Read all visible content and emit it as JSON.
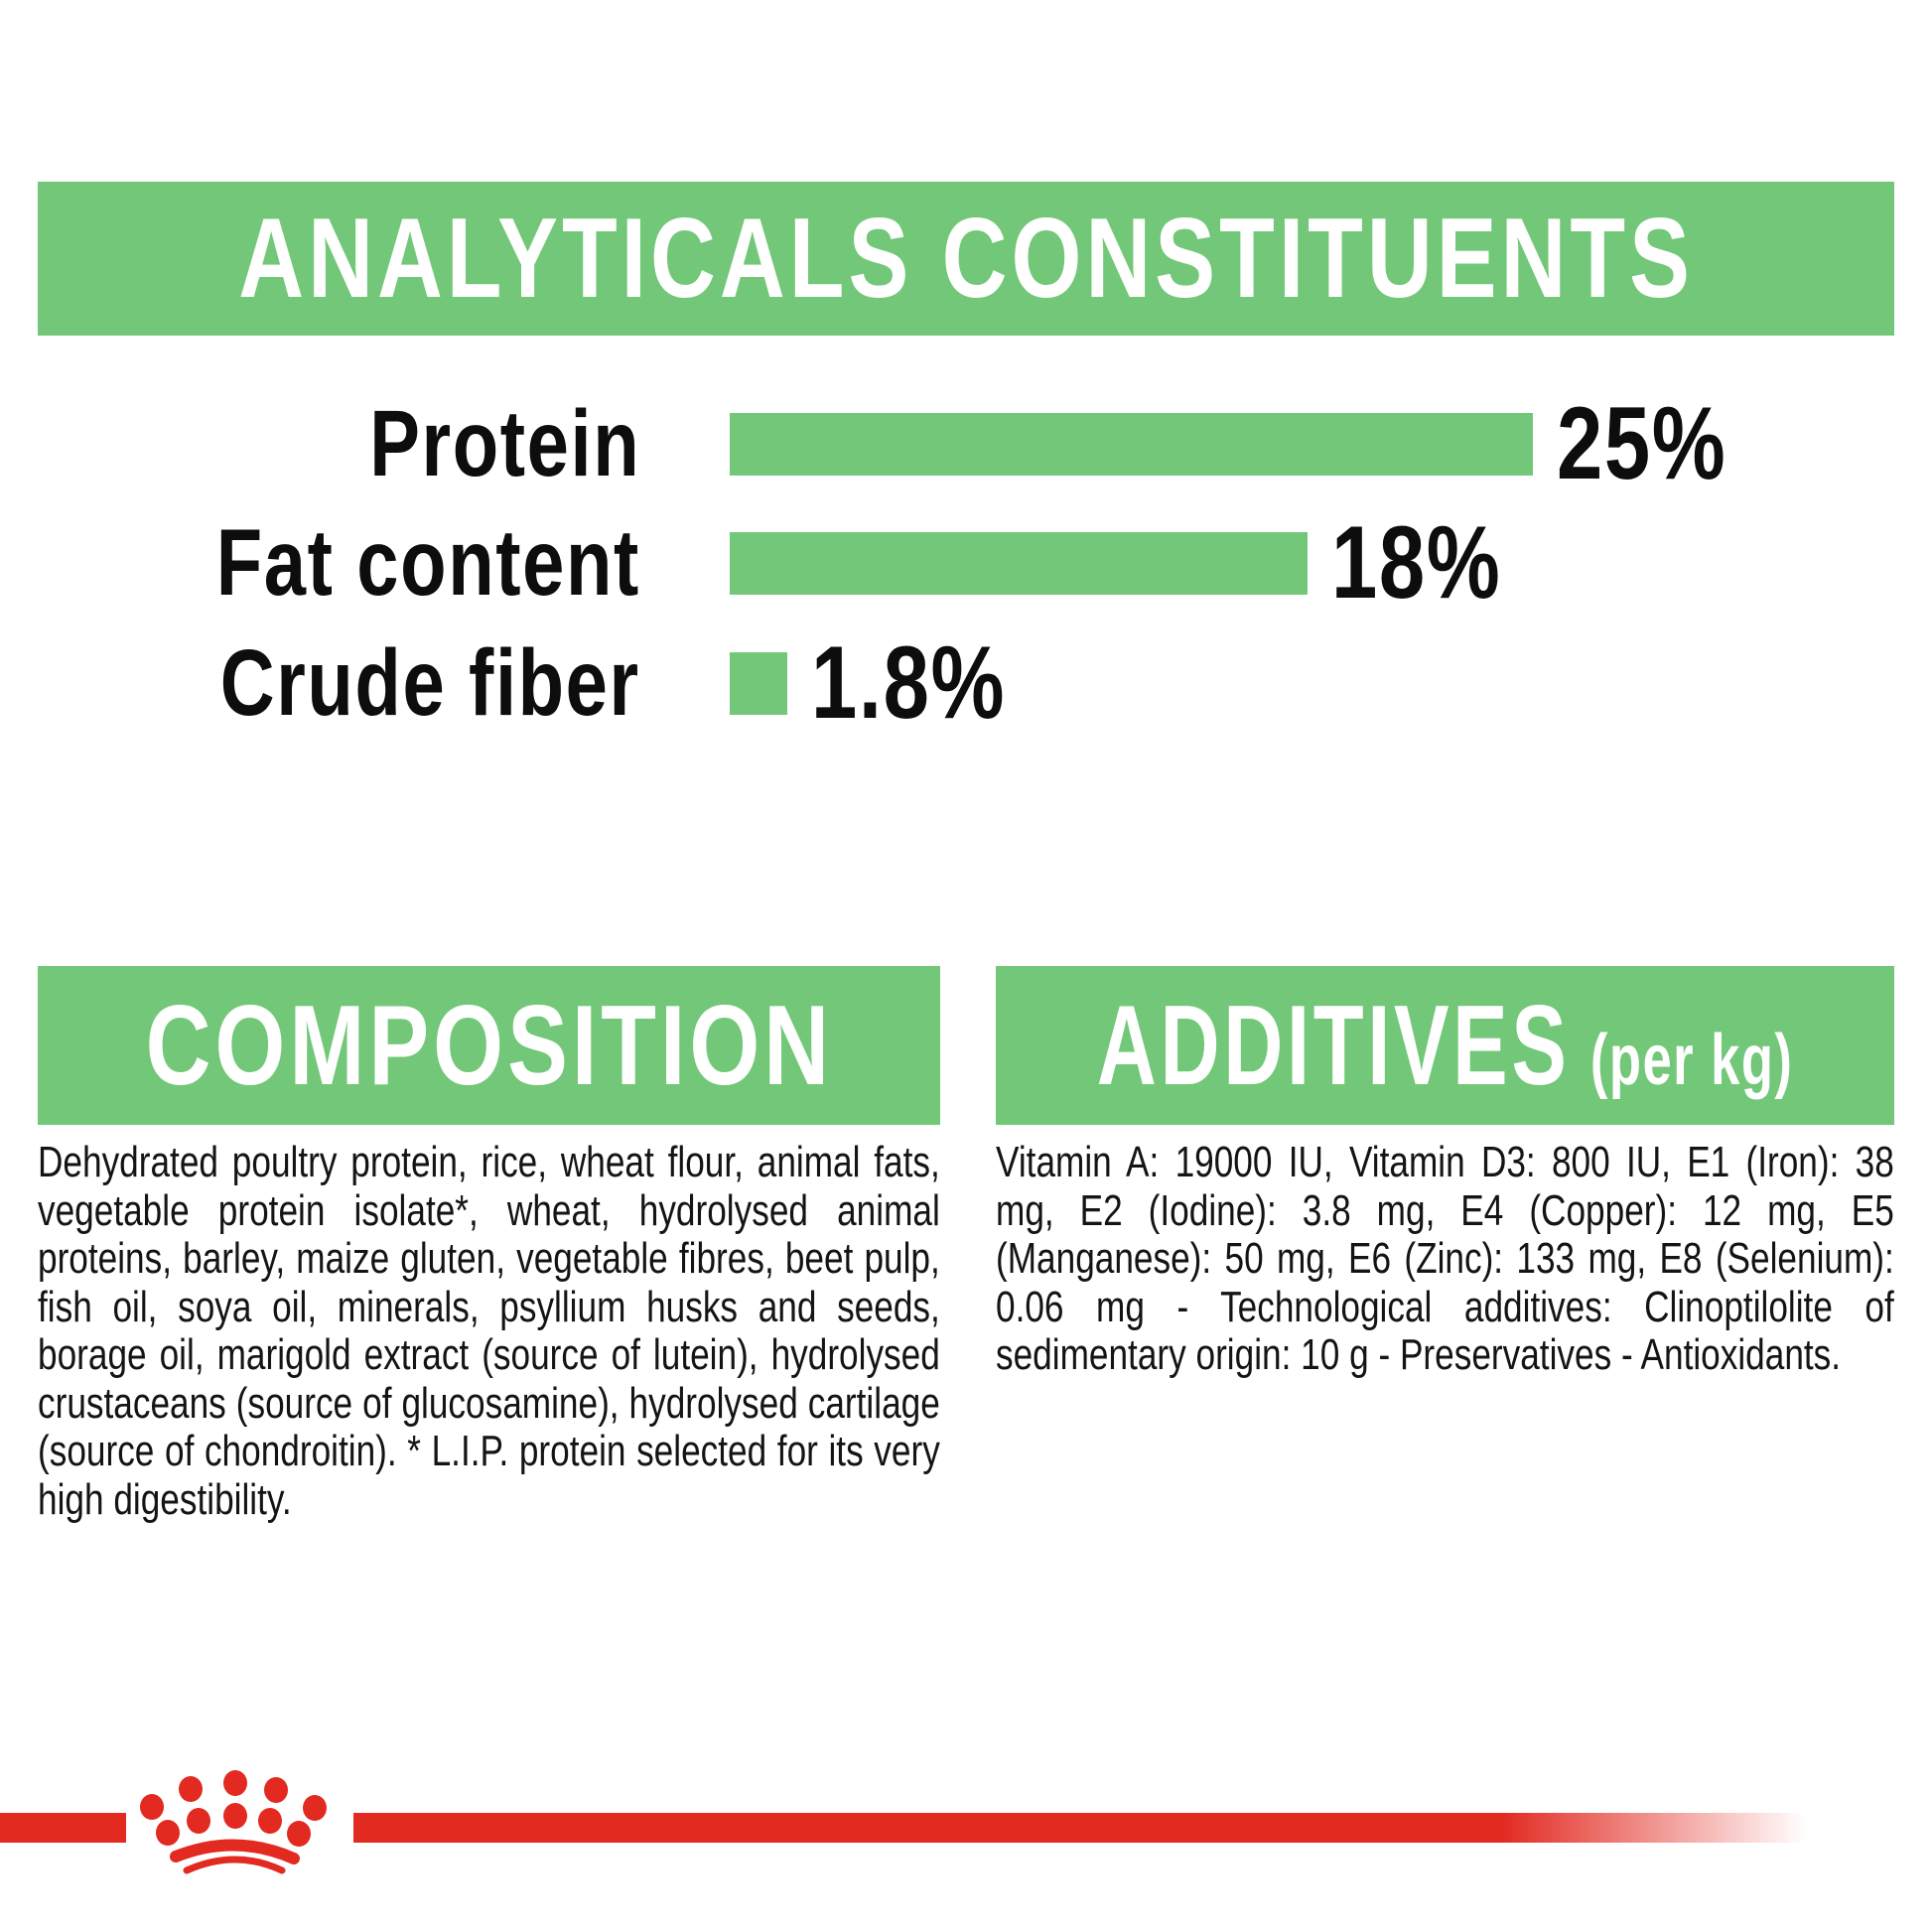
{
  "colors": {
    "green": "#72C878",
    "red": "#E22A21",
    "text": "#141414",
    "heading_text": "#ffffff",
    "background": "#ffffff"
  },
  "chart_data": {
    "type": "bar",
    "orientation": "horizontal",
    "title": "ANALYTICALS CONSTITUENTS",
    "categories": [
      "Protein",
      "Fat content",
      "Crude fiber"
    ],
    "values": [
      25,
      18,
      1.8
    ],
    "value_labels": [
      "25%",
      "18%",
      "1.8%"
    ],
    "unit": "%",
    "xlim": [
      0,
      25
    ],
    "bar_color": "#72C878",
    "grid": false,
    "legend": false
  },
  "composition": {
    "title": "COMPOSITION",
    "body": "Dehydrated poultry protein, rice, wheat flour, animal fats, vegetable protein isolate*, wheat, hydrolysed animal proteins, barley, maize gluten, vegetable fibres, beet pulp, fish oil, soya oil, minerals, psyllium husks and seeds, borage oil, marigold extract (source of lutein), hydrolysed crustaceans (source of glucosamine), hydrolysed cartilage (source of chondroitin). * L.I.P. protein selected for its very high digestibility."
  },
  "additives": {
    "title": "ADDITIVES",
    "title_suffix": "(per kg)",
    "body": "Vitamin A: 19000 IU, Vitamin D3: 800 IU, E1 (Iron): 38 mg, E2 (Iodine): 3.8 mg, E4 (Copper): 12 mg, E5 (Manganese): 50 mg, E6 (Zinc): 133 mg, E8 (Selenium): 0.06 mg - Technological additives: Clinoptilolite of sedimentary origin: 10 g - Preservatives - Antioxidants.",
    "footnote": ""
  },
  "footer": {
    "brand_logo": "royal-canin-crown-paw-logo"
  }
}
